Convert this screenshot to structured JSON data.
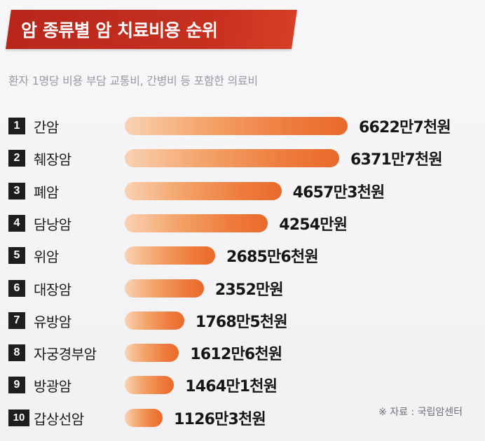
{
  "chart_data": {
    "type": "bar",
    "orientation": "horizontal",
    "title": "암 종류별 암 치료비용 순위",
    "subtitle": "환자 1명당 비용 부담 교통비, 간병비 등 포함한 의료비",
    "categories": [
      "간암",
      "췌장암",
      "폐암",
      "담낭암",
      "위암",
      "대장암",
      "유방암",
      "자궁경부암",
      "방광암",
      "갑상선암"
    ],
    "ranks": [
      "1",
      "2",
      "3",
      "4",
      "5",
      "6",
      "7",
      "8",
      "9",
      "10"
    ],
    "values": [
      66227000,
      63717000,
      46573000,
      42540000,
      26856000,
      23520000,
      17685000,
      16126000,
      14641000,
      11263000
    ],
    "value_labels": [
      "6622만7천원",
      "6371만7천원",
      "4657만3천원",
      "4254만원",
      "2685만6천원",
      "2352만원",
      "1768만5천원",
      "1612만6천원",
      "1464만1천원",
      "1126만3천원"
    ],
    "source": "※ 자료 : 국립암센터",
    "colors": {
      "bar_start": "#f9d2b4",
      "bar_end": "#e96a2a",
      "banner": "#c7301f"
    }
  }
}
